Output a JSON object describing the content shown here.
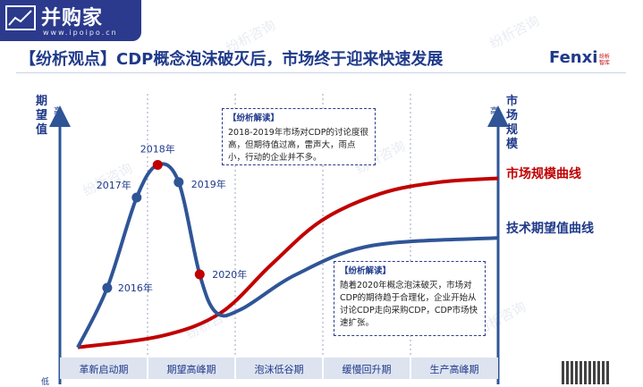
{
  "logo": {
    "text": "并购家",
    "url": "www.ipoipo.cn"
  },
  "headline": "【纷析观点】CDP概念泡沫破灭后，市场终于迎来快速发展",
  "brand": {
    "name": "Fenxi",
    "sub": "纷析智库"
  },
  "watermark": "纷析咨询",
  "qr_label": "qr-code",
  "chart_data": {
    "type": "line",
    "y_axis_left": {
      "label": "期望值",
      "high": "高",
      "low": "低"
    },
    "y_axis_right": {
      "label": "市场规模",
      "high": "高"
    },
    "phases": [
      "革新启动期",
      "期望高峰期",
      "泡沫低谷期",
      "缓慢回升期",
      "生产高峰期"
    ],
    "series": [
      {
        "name": "技术期望值曲线",
        "color": "#2f5597",
        "points": [
          {
            "x": 0.0,
            "y": 0.02
          },
          {
            "x": 0.07,
            "y": 0.33
          },
          {
            "x": 0.14,
            "y": 0.8
          },
          {
            "x": 0.19,
            "y": 0.97
          },
          {
            "x": 0.24,
            "y": 0.88
          },
          {
            "x": 0.29,
            "y": 0.4
          },
          {
            "x": 0.33,
            "y": 0.2
          },
          {
            "x": 0.39,
            "y": 0.22
          },
          {
            "x": 0.52,
            "y": 0.4
          },
          {
            "x": 0.7,
            "y": 0.55
          },
          {
            "x": 1.0,
            "y": 0.59
          }
        ],
        "markers": [
          {
            "label": "2016年",
            "x": 0.07,
            "y": 0.33,
            "color": "#2f5597"
          },
          {
            "label": "2017年",
            "x": 0.14,
            "y": 0.8,
            "color": "#2f5597"
          },
          {
            "label": "2018年",
            "x": 0.19,
            "y": 0.97,
            "color": "#c00000"
          },
          {
            "label": "2019年",
            "x": 0.24,
            "y": 0.88,
            "color": "#2f5597"
          },
          {
            "label": "2020年",
            "x": 0.29,
            "y": 0.4,
            "color": "#c00000"
          }
        ]
      },
      {
        "name": "市场规模曲线",
        "color": "#c00000",
        "points": [
          {
            "x": 0.0,
            "y": 0.02
          },
          {
            "x": 0.2,
            "y": 0.08
          },
          {
            "x": 0.34,
            "y": 0.2
          },
          {
            "x": 0.46,
            "y": 0.45
          },
          {
            "x": 0.58,
            "y": 0.68
          },
          {
            "x": 0.72,
            "y": 0.82
          },
          {
            "x": 0.86,
            "y": 0.88
          },
          {
            "x": 1.0,
            "y": 0.9
          }
        ]
      }
    ]
  },
  "notes": [
    {
      "title": "【纷析解读】",
      "text": "2018-2019年市场对CDP的讨论度很高，但期待值过高，雷声大，雨点小，行动的企业并不多。"
    },
    {
      "title": "【纷析解读】",
      "text": "随着2020年概念泡沫破灭，市场对CDP的期待趋于合理化，企业开始从讨论CDP走向采购CDP，CDP市场快速扩张。"
    }
  ]
}
